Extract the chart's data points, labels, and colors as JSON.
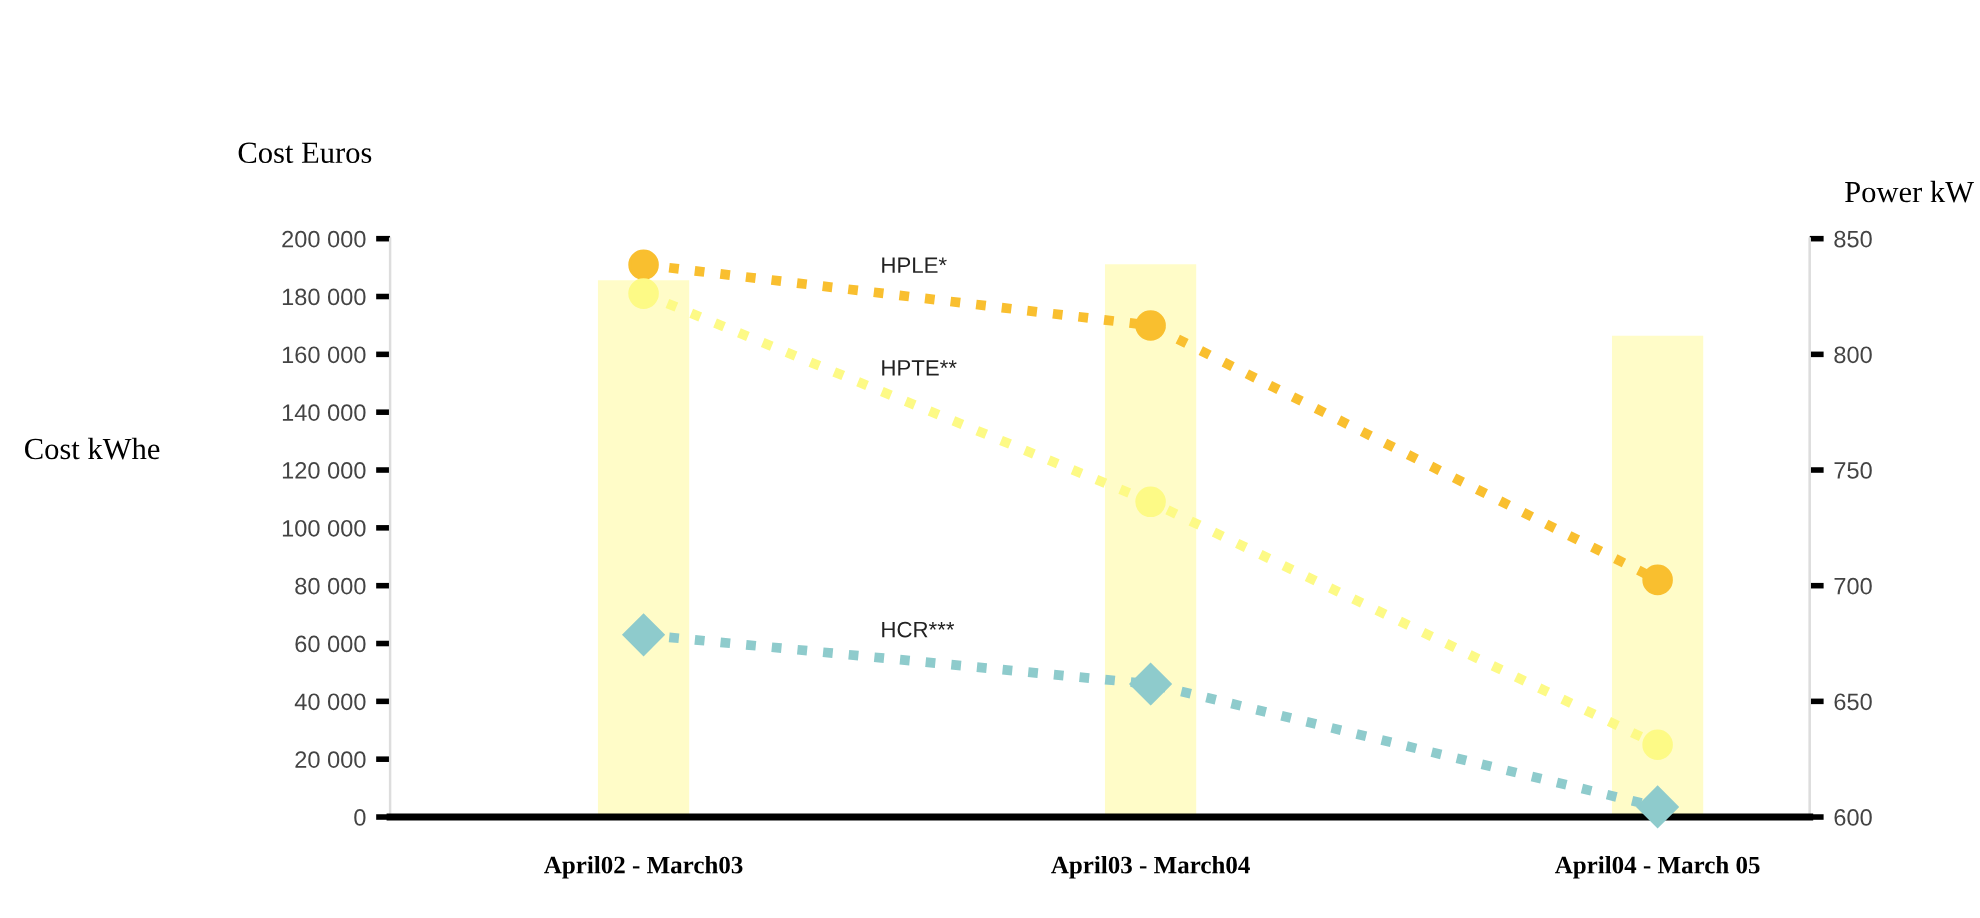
{
  "chart_data": {
    "type": "line",
    "ylabel": "Cost Euros",
    "y2label": "Power kW",
    "annotations": [
      "Cost kWhe"
    ],
    "categories": [
      "April02 - March03",
      "April03 - March04",
      "April04 - March 05"
    ],
    "series": [
      {
        "type": "bar",
        "axis": "y2",
        "color": "#fffcc8",
        "values": [
          832,
          839,
          808
        ]
      },
      {
        "name": "HPLE*",
        "color": "#f9bf2f",
        "marker": "circle",
        "values": [
          191000,
          170000,
          82000
        ]
      },
      {
        "name": "HPTE**",
        "color": "#fdfa86",
        "marker": "circle",
        "values": [
          181000,
          109000,
          25000
        ]
      },
      {
        "name": "HCR***",
        "color": "#8ecbcc",
        "marker": "diamond",
        "values": [
          63000,
          46000,
          3500
        ]
      }
    ],
    "line_style": "dotted",
    "legend": false,
    "grid": false,
    "ylim": [
      0,
      200000
    ],
    "yticks": [
      0,
      {
        "value": 20000,
        "label": "20 000"
      },
      {
        "value": 40000,
        "label": "40 000"
      },
      {
        "value": 60000,
        "label": "60 000"
      },
      {
        "value": 80000,
        "label": "80 000"
      },
      {
        "value": 100000,
        "label": "100 000"
      },
      {
        "value": 120000,
        "label": "120 000"
      },
      {
        "value": 140000,
        "label": "140 000"
      },
      {
        "value": 160000,
        "label": "160 000"
      },
      {
        "value": 180000,
        "label": "180 000"
      },
      {
        "value": 200000,
        "label": "200 000"
      }
    ],
    "y2lim": [
      600,
      850
    ],
    "y2ticks": [
      600,
      650,
      700,
      750,
      800,
      850
    ]
  }
}
